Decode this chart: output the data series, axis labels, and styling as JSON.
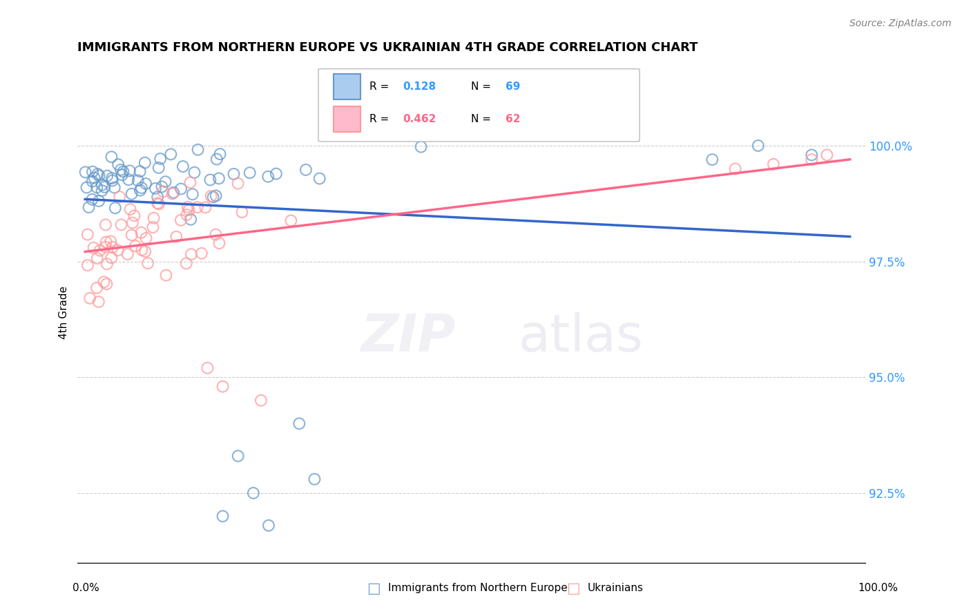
{
  "title": "IMMIGRANTS FROM NORTHERN EUROPE VS UKRAINIAN 4TH GRADE CORRELATION CHART",
  "source": "Source: ZipAtlas.com",
  "ylabel": "4th Grade",
  "ylabel_tick_labels": [
    "100.0%",
    "97.5%",
    "95.0%",
    "92.5%"
  ],
  "ylabel_ticks": [
    100.0,
    97.5,
    95.0,
    92.5
  ],
  "xlim": [
    0.0,
    1.0
  ],
  "ylim": [
    91.0,
    101.8
  ],
  "blue_R": 0.128,
  "blue_N": 69,
  "pink_R": 0.462,
  "pink_N": 62,
  "blue_color": "#6699CC",
  "pink_color": "#FF9999",
  "blue_line_color": "#3366CC",
  "pink_line_color": "#FF6688",
  "legend_label_blue": "Immigrants from Northern Europe",
  "legend_label_pink": "Ukrainians"
}
